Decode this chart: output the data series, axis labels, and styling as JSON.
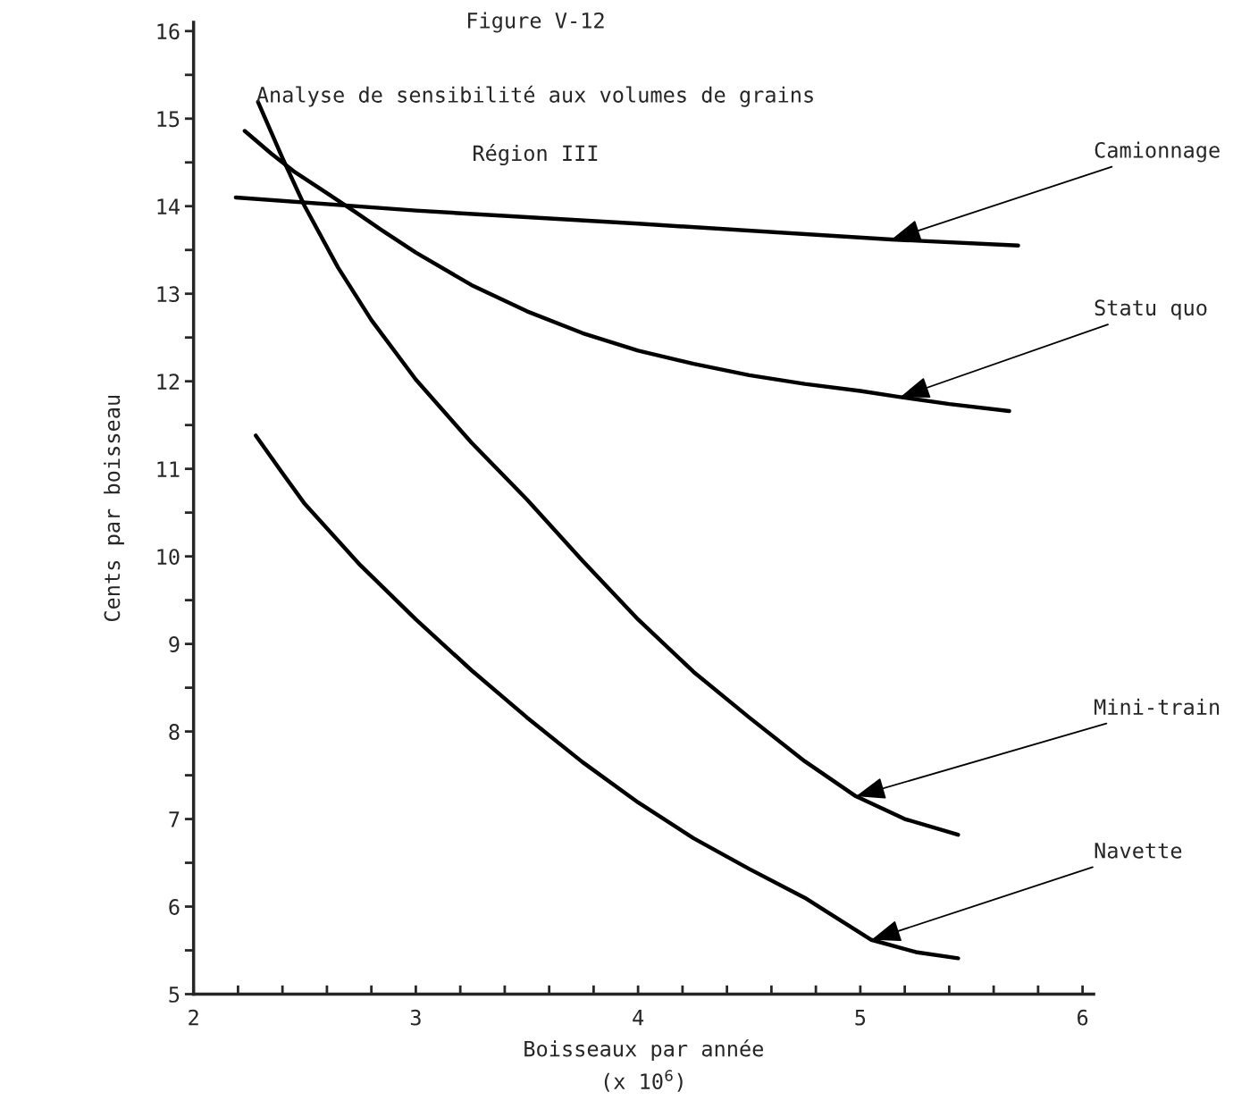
{
  "chart_data": {
    "type": "line",
    "title": "Figure V-12",
    "subtitle": "Analyse de sensibilité aux volumes de grains\n\nRégion III",
    "xlabel": "Boisseaux par année\n(x 10$^{6}$)",
    "ylabel": "Cents par boisseau",
    "xlim": [
      2,
      6.05
    ],
    "ylim": [
      5,
      16.1
    ],
    "xticks": [
      2,
      {
        "value": 2.2,
        "label": null
      },
      {
        "value": 2.4,
        "label": null
      },
      {
        "value": 2.6,
        "label": null
      },
      {
        "value": 2.8,
        "label": null
      },
      3,
      {
        "value": 3.2,
        "label": null
      },
      {
        "value": 3.4,
        "label": null
      },
      {
        "value": 3.6,
        "label": null
      },
      {
        "value": 3.8,
        "label": null
      },
      4,
      {
        "value": 4.2,
        "label": null
      },
      {
        "value": 4.4,
        "label": null
      },
      {
        "value": 4.6,
        "label": null
      },
      {
        "value": 4.8,
        "label": null
      },
      5,
      {
        "value": 5.2,
        "label": null
      },
      {
        "value": 5.4,
        "label": null
      },
      {
        "value": 5.6,
        "label": null
      },
      {
        "value": 5.8,
        "label": null
      },
      6
    ],
    "yticks": [
      5,
      {
        "value": 5.5,
        "label": null
      },
      6,
      {
        "value": 6.5,
        "label": null
      },
      7,
      {
        "value": 7.5,
        "label": null
      },
      8,
      {
        "value": 8.5,
        "label": null
      },
      9,
      {
        "value": 9.5,
        "label": null
      },
      10,
      {
        "value": 10.5,
        "label": null
      },
      11,
      {
        "value": 11.5,
        "label": null
      },
      12,
      {
        "value": 12.5,
        "label": null
      },
      13,
      {
        "value": 13.5,
        "label": null
      },
      14,
      {
        "value": 14.5,
        "label": null
      },
      15,
      {
        "value": 15.5,
        "label": null
      },
      16
    ],
    "grid": false,
    "legend": false,
    "marker": "none",
    "line_style": "solid",
    "series": [
      {
        "color": "#000000",
        "x": [
          2.19,
          3.0,
          4.0,
          5.14,
          5.71
        ],
        "values": [
          14.1,
          13.95,
          13.8,
          13.62,
          13.55
        ]
      },
      {
        "color": "#000000",
        "x": [
          2.23,
          2.35,
          2.45,
          2.6,
          2.73,
          2.85,
          3.0,
          3.25,
          3.5,
          3.75,
          4.0,
          4.25,
          4.5,
          4.75,
          5.0,
          5.18,
          5.4,
          5.67
        ],
        "values": [
          14.86,
          14.6,
          14.4,
          14.15,
          13.93,
          13.72,
          13.47,
          13.1,
          12.8,
          12.55,
          12.35,
          12.2,
          12.07,
          11.97,
          11.89,
          11.82,
          11.74,
          11.66
        ]
      },
      {
        "color": "#000000",
        "x": [
          2.29,
          2.4,
          2.5,
          2.65,
          2.8,
          3.0,
          3.25,
          3.5,
          3.75,
          4.0,
          4.25,
          4.5,
          4.75,
          4.98,
          5.2,
          5.44
        ],
        "values": [
          15.19,
          14.55,
          14.0,
          13.3,
          12.7,
          12.02,
          11.3,
          10.65,
          9.95,
          9.28,
          8.68,
          8.16,
          7.66,
          7.26,
          7.0,
          6.82
        ]
      },
      {
        "color": "#000000",
        "x": [
          2.28,
          2.4,
          2.5,
          2.75,
          3.0,
          3.25,
          3.5,
          3.75,
          4.0,
          4.25,
          4.5,
          4.75,
          5.05,
          5.25,
          5.44
        ],
        "values": [
          11.38,
          10.95,
          10.6,
          9.9,
          9.28,
          8.7,
          8.16,
          7.65,
          7.19,
          6.78,
          6.43,
          6.1,
          5.62,
          5.48,
          5.41
        ]
      }
    ],
    "annotations": [
      {
        "text": "Camionnage",
        "x": 5.14,
        "y": 13.62
      },
      {
        "text": "Statu quo",
        "x": 5.18,
        "y": 11.82
      },
      {
        "text": "Mini-train",
        "x": 4.98,
        "y": 7.26
      },
      {
        "text": "Navette",
        "x": 5.05,
        "y": 5.62
      }
    ]
  }
}
